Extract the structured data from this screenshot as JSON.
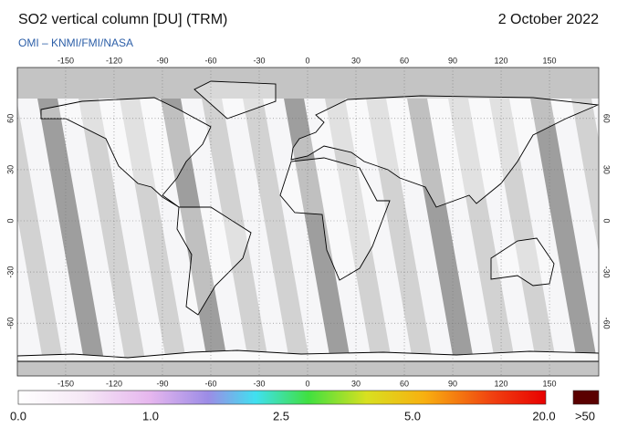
{
  "header": {
    "title": "SO2 vertical column [DU] (TRM)",
    "date": "2 October 2022",
    "source": "OMI  –  KNMI/FMI/NASA"
  },
  "map": {
    "lon_ticks": [
      -150,
      -120,
      -90,
      -60,
      -30,
      0,
      30,
      60,
      90,
      120,
      150
    ],
    "lat_ticks": [
      60,
      30,
      0,
      -30,
      -60
    ]
  },
  "colorbar": {
    "labels": [
      "0.0",
      "1.0",
      "2.5",
      "5.0",
      "20.0",
      ">50"
    ]
  }
}
